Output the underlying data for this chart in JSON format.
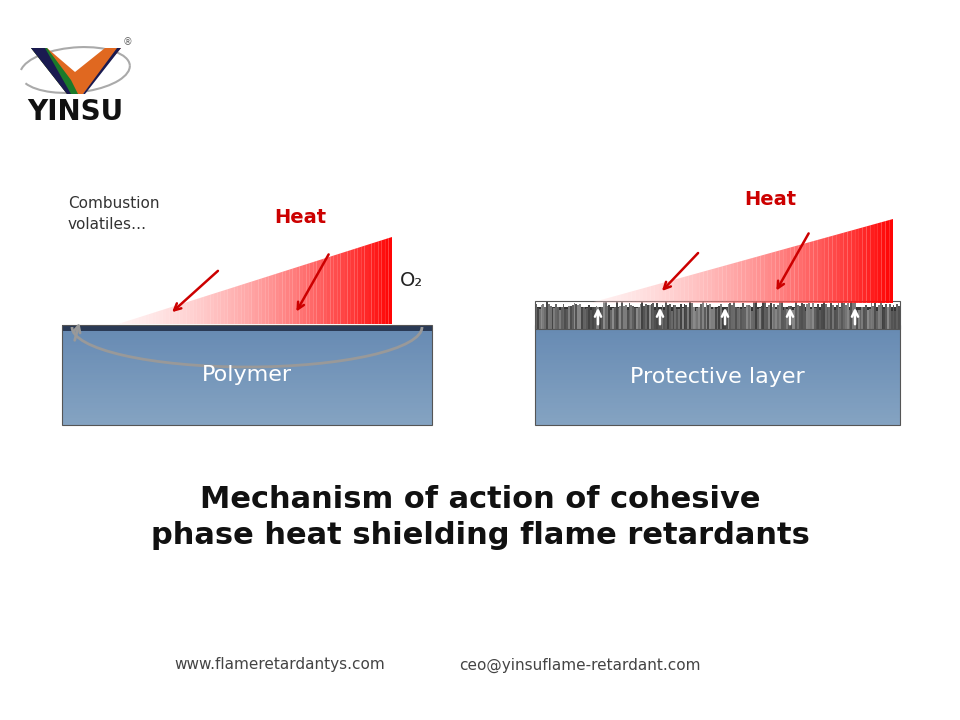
{
  "title_line1": "Mechanism of action of cohesive",
  "title_line2": "phase heat shielding flame retardants",
  "title_fontsize": 22,
  "title_color": "#111111",
  "footer_text1": "www.flameretardantys.com",
  "footer_text2": "ceo@yinsuflame-retardant.com",
  "footer_fontsize": 11,
  "footer_color": "#444444",
  "bg_color": "#ffffff",
  "left_polymer_label": "Polymer",
  "left_polymer_label_color": "#ffffff",
  "left_heat_label": "Heat",
  "left_heat_color": "#cc0000",
  "left_o2_label": "O₂",
  "left_o2_color": "#222222",
  "left_comb_label": "Combustion\nvolatiles…",
  "left_comb_color": "#333333",
  "right_prot_label": "Protective layer",
  "right_prot_label_color": "#ffffff",
  "right_heat_label": "Heat",
  "right_heat_color": "#cc0000",
  "yinsu_color": "#111111"
}
